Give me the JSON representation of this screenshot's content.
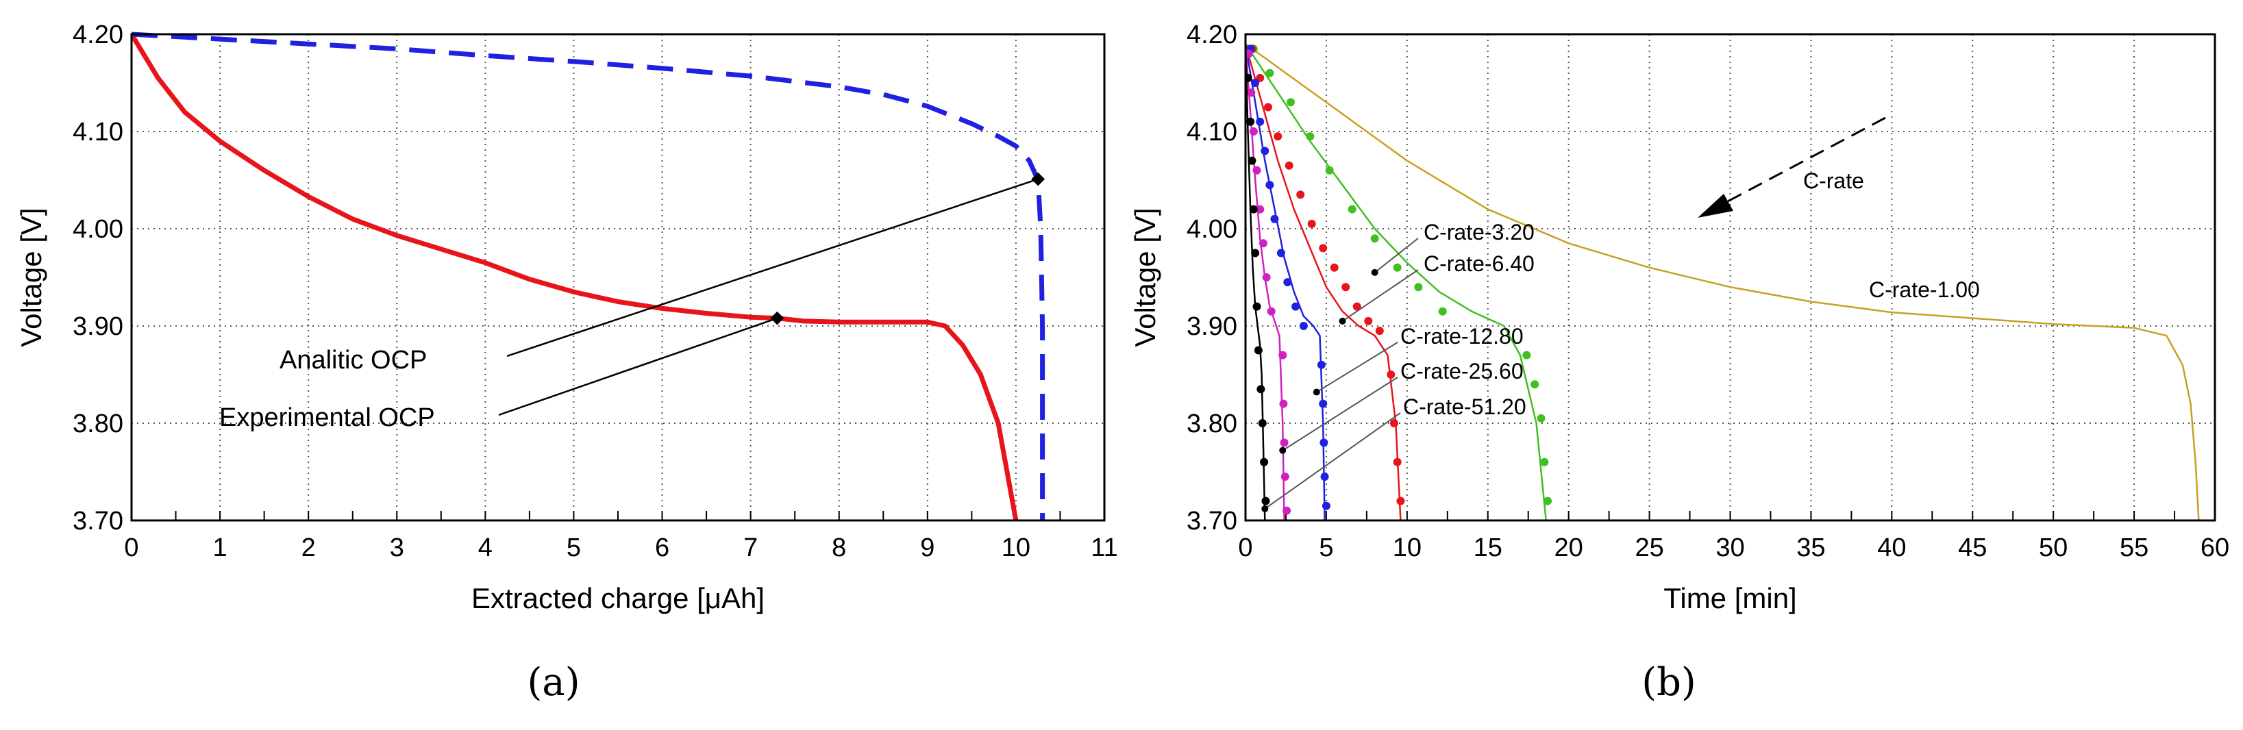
{
  "chart_data": [
    {
      "panel": "(a)",
      "type": "line",
      "xlabel": "Extracted charge [μAh]",
      "ylabel": "Voltage [V]",
      "xlim": [
        0,
        11
      ],
      "ylim": [
        3.7,
        4.2
      ],
      "xticks": [
        "0",
        "1",
        "2",
        "3",
        "4",
        "5",
        "6",
        "7",
        "8",
        "9",
        "10",
        "11"
      ],
      "yticks": [
        "3.70",
        "3.80",
        "3.90",
        "4.00",
        "4.10",
        "4.20"
      ],
      "grid": true,
      "series": [
        {
          "name": "Experimental OCP",
          "color": "#e8141c",
          "style": "solid",
          "x": [
            0,
            0.3,
            0.6,
            1,
            1.5,
            2,
            2.5,
            3,
            3.5,
            4,
            4.5,
            5,
            5.5,
            6,
            6.5,
            7,
            7.3,
            7.6,
            8,
            8.5,
            9,
            9.2,
            9.4,
            9.6,
            9.8,
            10
          ],
          "y": [
            4.2,
            4.155,
            4.12,
            4.09,
            4.06,
            4.033,
            4.01,
            3.993,
            3.979,
            3.965,
            3.948,
            3.935,
            3.925,
            3.918,
            3.913,
            3.909,
            3.908,
            3.905,
            3.904,
            3.904,
            3.904,
            3.9,
            3.88,
            3.85,
            3.8,
            3.7
          ]
        },
        {
          "name": "Analitic OCP",
          "color": "#2020e0",
          "style": "dashed",
          "x": [
            0,
            1,
            2,
            3,
            4,
            5,
            6,
            7,
            8,
            8.5,
            9,
            9.5,
            9.8,
            10,
            10.15,
            10.25,
            10.28,
            10.3,
            10.3
          ],
          "y": [
            4.2,
            4.195,
            4.19,
            4.185,
            4.178,
            4.172,
            4.165,
            4.157,
            4.146,
            4.138,
            4.126,
            4.108,
            4.095,
            4.085,
            4.07,
            4.05,
            4.0,
            3.9,
            3.7
          ]
        }
      ],
      "annotations": [
        {
          "text": "Analitic OCP",
          "point": [
            10.25,
            4.051
          ]
        },
        {
          "text": "Experimental OCP",
          "point": [
            7.3,
            3.908
          ]
        }
      ]
    },
    {
      "panel": "(b)",
      "type": "line",
      "xlabel": "Time [min]",
      "ylabel": "Voltage [V]",
      "xlim": [
        0,
        60
      ],
      "ylim": [
        3.7,
        4.2
      ],
      "xticks": [
        "0",
        "5",
        "10",
        "15",
        "20",
        "25",
        "30",
        "35",
        "40",
        "45",
        "50",
        "55",
        "60"
      ],
      "yticks": [
        "3.70",
        "3.80",
        "3.90",
        "4.00",
        "4.10",
        "4.20"
      ],
      "grid": true,
      "arrow_label": "C-rate",
      "series": [
        {
          "name": "C-rate-1.00",
          "color": "#c8a020",
          "style": "solid",
          "x": [
            0,
            5,
            10,
            15,
            20,
            25,
            30,
            35,
            40,
            45,
            50,
            55,
            57,
            58,
            58.5,
            58.8,
            59
          ],
          "y": [
            4.19,
            4.13,
            4.07,
            4.02,
            3.985,
            3.96,
            3.94,
            3.925,
            3.914,
            3.908,
            3.902,
            3.898,
            3.89,
            3.86,
            3.82,
            3.76,
            3.7
          ]
        },
        {
          "name": "C-rate-3.20",
          "color": "#40c020",
          "style": "solid",
          "x": [
            0,
            2,
            4,
            6,
            8,
            10,
            12,
            14,
            16,
            17,
            18,
            18.6
          ],
          "y": [
            4.19,
            4.14,
            4.09,
            4.045,
            4.0,
            3.965,
            3.935,
            3.915,
            3.9,
            3.87,
            3.8,
            3.7
          ]
        },
        {
          "name": "C-rate-3.20 (exp)",
          "color": "#40c020",
          "style": "dots",
          "x": [
            0.5,
            1.5,
            2.8,
            4,
            5.2,
            6.6,
            8,
            9.4,
            10.7,
            12.2,
            17.4,
            17.9,
            18.3,
            18.5,
            18.7
          ],
          "y": [
            4.185,
            4.16,
            4.13,
            4.095,
            4.06,
            4.02,
            3.99,
            3.96,
            3.94,
            3.915,
            3.87,
            3.84,
            3.805,
            3.76,
            3.72
          ]
        },
        {
          "name": "C-rate-6.40",
          "color": "#e8141c",
          "style": "solid",
          "x": [
            0,
            1,
            2,
            3,
            4,
            5,
            6,
            7,
            8,
            8.8,
            9.3,
            9.6
          ],
          "y": [
            4.19,
            4.13,
            4.07,
            4.02,
            3.98,
            3.94,
            3.915,
            3.9,
            3.89,
            3.87,
            3.8,
            3.7
          ]
        },
        {
          "name": "C-rate-6.40 (exp)",
          "color": "#e8141c",
          "style": "dots",
          "x": [
            0.4,
            0.9,
            1.4,
            2,
            2.7,
            3.4,
            4.1,
            4.8,
            5.5,
            6.2,
            6.9,
            7.6,
            8.3,
            9.0,
            9.2,
            9.4,
            9.6
          ],
          "y": [
            4.185,
            4.155,
            4.125,
            4.095,
            4.065,
            4.035,
            4.005,
            3.98,
            3.96,
            3.94,
            3.92,
            3.905,
            3.895,
            3.85,
            3.8,
            3.76,
            3.72
          ]
        },
        {
          "name": "C-rate-12.80",
          "color": "#2020e0",
          "style": "solid",
          "x": [
            0,
            0.6,
            1.2,
            1.8,
            2.4,
            3,
            3.6,
            4.2,
            4.6,
            4.8,
            4.9
          ],
          "y": [
            4.19,
            4.13,
            4.07,
            4.02,
            3.97,
            3.935,
            3.91,
            3.9,
            3.89,
            3.8,
            3.7
          ]
        },
        {
          "name": "C-rate-12.80 (exp)",
          "color": "#2020e0",
          "style": "dots",
          "x": [
            0.3,
            0.6,
            0.9,
            1.2,
            1.5,
            1.8,
            2.2,
            2.6,
            3.1,
            3.6,
            4.7,
            4.8,
            4.85,
            4.9,
            5.0
          ],
          "y": [
            4.185,
            4.15,
            4.11,
            4.08,
            4.045,
            4.01,
            3.975,
            3.945,
            3.92,
            3.9,
            3.86,
            3.82,
            3.78,
            3.745,
            3.715
          ]
        },
        {
          "name": "C-rate-25.60",
          "color": "#d020c0",
          "style": "solid",
          "x": [
            0,
            0.3,
            0.6,
            0.9,
            1.2,
            1.5,
            1.8,
            2.1,
            2.3,
            2.4
          ],
          "y": [
            4.19,
            4.12,
            4.05,
            3.99,
            3.95,
            3.92,
            3.905,
            3.89,
            3.8,
            3.7
          ]
        },
        {
          "name": "C-rate-25.60 (exp)",
          "color": "#d020c0",
          "style": "dots",
          "x": [
            0.2,
            0.35,
            0.5,
            0.7,
            0.9,
            1.1,
            1.3,
            1.6,
            2.3,
            2.35,
            2.4,
            2.45,
            2.55
          ],
          "y": [
            4.18,
            4.14,
            4.1,
            4.06,
            4.02,
            3.985,
            3.95,
            3.915,
            3.87,
            3.82,
            3.78,
            3.745,
            3.71
          ]
        },
        {
          "name": "C-rate-51.20",
          "color": "#000000",
          "style": "solid",
          "x": [
            0,
            0.15,
            0.3,
            0.45,
            0.6,
            0.75,
            0.9,
            1.0,
            1.1,
            1.2
          ],
          "y": [
            4.19,
            4.1,
            4.02,
            3.96,
            3.92,
            3.9,
            3.88,
            3.85,
            3.78,
            3.7
          ]
        },
        {
          "name": "C-rate-51.20 (exp)",
          "color": "#000000",
          "style": "dots",
          "x": [
            0.15,
            0.3,
            0.4,
            0.5,
            0.6,
            0.7,
            0.8,
            0.95,
            1.05,
            1.15,
            1.25
          ],
          "y": [
            4.155,
            4.11,
            4.07,
            4.02,
            3.975,
            3.92,
            3.875,
            3.835,
            3.8,
            3.76,
            3.72
          ]
        }
      ],
      "annotations": [
        {
          "text": "C-rate-3.20",
          "point": [
            8,
            3.955
          ]
        },
        {
          "text": "C-rate-6.40",
          "point": [
            6,
            3.905
          ]
        },
        {
          "text": "C-rate-12.80",
          "point": [
            4.4,
            3.832
          ]
        },
        {
          "text": "C-rate-25.60",
          "point": [
            2.3,
            3.772
          ]
        },
        {
          "text": "C-rate-51.20",
          "point": [
            1.2,
            3.712
          ]
        },
        {
          "text": "C-rate-1.00",
          "point": null
        }
      ]
    }
  ],
  "panel_labels": {
    "a": "(a)",
    "b": "(b)"
  }
}
